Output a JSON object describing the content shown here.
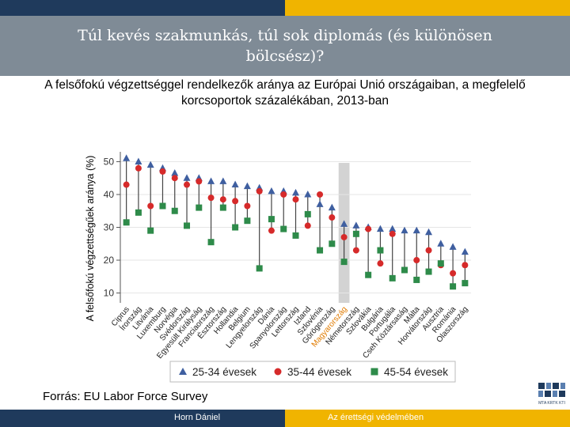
{
  "slide": {
    "title": "Túl kevés szakmunkás, túl sok diplomás (és különösen bölcsész)?",
    "subtitle": "A felsőfokú végzettséggel rendelkezők aránya az Európai Unió országaiban, a megfelelő korcsoportok százalékában, 2013-ban",
    "source": "Forrás: EU Labor Force Survey",
    "footer_author": "Horn Dániel",
    "footer_motto": "Az érettségi védelmében",
    "logo_text": "MTA KRTK KTI"
  },
  "colors": {
    "top_dark": "#1f3a5c",
    "top_gold": "#f0b400",
    "title_band": "#7f8b96",
    "series_25_34": "#3f5fa0",
    "series_35_44": "#d62a2a",
    "series_45_54": "#2e8b4a",
    "highlight_band": "#d3d3d3",
    "highlight_label": "#e07b00"
  },
  "chart_data": {
    "type": "scatter",
    "ylabel": "A felsőfokú végzettségűek aránya (%)",
    "xlabel": "",
    "ylim": [
      7,
      53
    ],
    "yticks": [
      10,
      20,
      30,
      40,
      50
    ],
    "grid": true,
    "legend_position": "bottom",
    "highlight_category": "Magyarország",
    "categories": [
      "Ciprus",
      "Írország",
      "Litvánia",
      "Luxemburg",
      "Norvégia",
      "Svédország",
      "Egyesült Királyság",
      "Franciaország",
      "Észtország",
      "Hollandia",
      "Belgium",
      "Lengyelország",
      "Dánia",
      "Spanyolország",
      "Lettország",
      "Izland",
      "Szlovénia",
      "Görögország",
      "Magyarország",
      "Németország",
      "Szlovákia",
      "Bulgária",
      "Portugália",
      "Cseh Köztársaság",
      "Málta",
      "Horvátország",
      "Ausztria",
      "Románia",
      "Olaszország"
    ],
    "series": [
      {
        "name": "25-34 évesek",
        "marker": "triangle",
        "values": [
          51,
          50,
          49,
          48,
          46.5,
          45,
          45,
          44,
          44,
          43,
          42.5,
          42,
          41,
          41,
          40.5,
          40,
          37,
          36,
          31,
          30.5,
          30,
          29.5,
          29.5,
          29,
          29,
          28.5,
          25,
          24,
          22.5
        ]
      },
      {
        "name": "35-44 évesek",
        "marker": "circle",
        "values": [
          43,
          48,
          36.5,
          47,
          45,
          43,
          44,
          39,
          38.5,
          38,
          36.5,
          41,
          29,
          40,
          38.5,
          30.5,
          40,
          33,
          27,
          23,
          29.5,
          19,
          28,
          17,
          20,
          23,
          18.5,
          16,
          18.5
        ]
      },
      {
        "name": "45-54 évesek",
        "marker": "square",
        "values": [
          31.5,
          34.5,
          29,
          36.5,
          35,
          30.5,
          36,
          25.5,
          36,
          30,
          32,
          17.5,
          32.5,
          29.5,
          27.5,
          34,
          23,
          25,
          19.5,
          28,
          15.5,
          23,
          14.5,
          17,
          14,
          16.5,
          19,
          12,
          13
        ]
      }
    ],
    "legend": [
      "25-34 évesek",
      "35-44 évesek",
      "45-54 évesek"
    ]
  }
}
